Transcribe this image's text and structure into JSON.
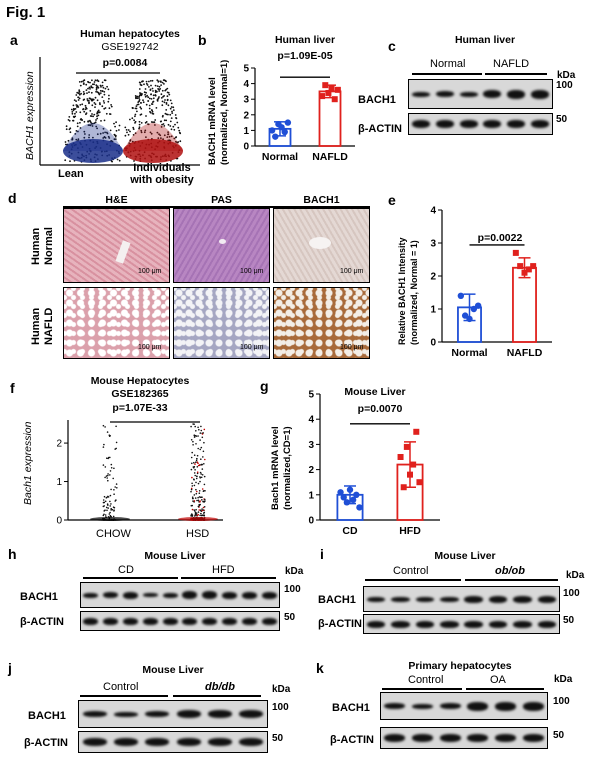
{
  "figure_title": "Fig. 1",
  "panels": {
    "a": {
      "label": "a",
      "title_line1": "Human hepatocytes",
      "title_line2": "GSE192742",
      "pvalue": "p=0.0084",
      "ylabel": "BACH1 expression",
      "group1": "Lean",
      "group2_line1": "Individuals",
      "group2_line2": "with obesity"
    },
    "b": {
      "label": "b",
      "title": "Human liver",
      "pvalue": "p=1.09E-05",
      "ylabel_line1": "BACH1 mRNA  level",
      "ylabel_line2": "(normalized, Normal=1)"
    },
    "c": {
      "label": "c",
      "title": "Human liver",
      "group1": "Normal",
      "group2": "NAFLD",
      "row1": "BACH1",
      "row2": "β-ACTIN",
      "kda": "kDa",
      "mw1": "100",
      "mw2": "50"
    },
    "d": {
      "label": "d",
      "col1": "H&E",
      "col2": "PAS",
      "col3": "BACH1",
      "row1_line1": "Human",
      "row1_line2": "Normal",
      "row2_line1": "Human",
      "row2_line2": "NAFLD",
      "scale": "100 μm"
    },
    "e": {
      "label": "e",
      "pvalue": "p=0.0022",
      "ylabel_line1": "Relative BACH1 Intensity",
      "ylabel_line2": "(normalized, Normal = 1)"
    },
    "f": {
      "label": "f",
      "title_line1": "Mouse  Hepatocytes",
      "title_line2": "GSE182365",
      "pvalue": "p=1.07E-33",
      "ylabel": "Bach1 expression",
      "group1": "CHOW",
      "group2": "HSD"
    },
    "g": {
      "label": "g",
      "title": "Mouse Liver",
      "pvalue": "p=0.0070",
      "ylabel_line1": "Bach1 mRNA  level",
      "ylabel_line2": "(normalized,CD=1)"
    },
    "h": {
      "label": "h",
      "title": "Mouse Liver",
      "group1": "CD",
      "group2": "HFD",
      "row1": "BACH1",
      "row2": "β-ACTIN",
      "kda": "kDa",
      "mw1": "100",
      "mw2": "50"
    },
    "i": {
      "label": "i",
      "title": "Mouse Liver",
      "group1": "Control",
      "group2": "ob/ob",
      "row1": "BACH1",
      "row2": "β-ACTIN",
      "kda": "kDa",
      "mw1": "100",
      "mw2": "50"
    },
    "j": {
      "label": "j",
      "title": "Mouse Liver",
      "group1": "Control",
      "group2": "db/db",
      "row1": "BACH1",
      "row2": "β-ACTIN",
      "kda": "kDa",
      "mw1": "100",
      "mw2": "50"
    },
    "k": {
      "label": "k",
      "title": "Primary hepatocytes",
      "group1": "Control",
      "group2": "OA",
      "row1": "BACH1",
      "row2": "β-ACTIN",
      "kda": "kDa",
      "mw1": "100",
      "mw2": "50"
    }
  },
  "chart_data": [
    {
      "panel": "a",
      "type": "scatter",
      "categories": [
        "Lean",
        "Individuals with obesity"
      ],
      "ylabel": "BACH1 expression",
      "colors": [
        "#1a2f8a",
        "#b01010"
      ]
    },
    {
      "panel": "b",
      "type": "bar",
      "title": "Human liver",
      "categories": [
        "Normal",
        "NAFLD"
      ],
      "values": [
        1.1,
        3.5
      ],
      "sd": [
        0.45,
        0.4
      ],
      "points": [
        [
          1.0,
          0.6,
          1.4,
          1.2,
          0.9,
          1.5
        ],
        [
          3.2,
          3.9,
          3.4,
          3.7,
          3.0,
          3.6
        ]
      ],
      "ylim": [
        0,
        5
      ],
      "yticks": [
        0,
        1,
        2,
        3,
        4,
        5
      ],
      "colors": [
        "#1f4fd6",
        "#e0211d"
      ]
    },
    {
      "panel": "e",
      "type": "bar",
      "categories": [
        "Normal",
        "NAFLD"
      ],
      "values": [
        1.05,
        2.25
      ],
      "sd": [
        0.4,
        0.3
      ],
      "points": [
        [
          1.4,
          0.8,
          0.7,
          1.0,
          1.1
        ],
        [
          2.7,
          2.3,
          2.1,
          2.2,
          2.3
        ]
      ],
      "ylim": [
        0,
        4
      ],
      "yticks": [
        0,
        1,
        2,
        3,
        4
      ],
      "colors": [
        "#1f4fd6",
        "#e0211d"
      ]
    },
    {
      "panel": "f",
      "type": "scatter",
      "categories": [
        "CHOW",
        "HSD"
      ],
      "ylabel": "Bach1 expression",
      "yticks": [
        0,
        1,
        2
      ],
      "colors": [
        "#000000",
        "#c00000"
      ]
    },
    {
      "panel": "g",
      "type": "bar",
      "title": "Mouse Liver",
      "categories": [
        "CD",
        "HFD"
      ],
      "values": [
        1.0,
        2.2
      ],
      "sd": [
        0.35,
        0.9
      ],
      "points": [
        [
          1.1,
          0.9,
          0.7,
          1.2,
          0.8,
          1.0,
          0.5
        ],
        [
          2.5,
          1.3,
          2.9,
          1.8,
          2.2,
          3.5,
          1.5
        ]
      ],
      "ylim": [
        0,
        5
      ],
      "yticks": [
        0,
        1,
        2,
        3,
        4,
        5
      ],
      "colors": [
        "#1f4fd6",
        "#e0211d"
      ]
    }
  ]
}
